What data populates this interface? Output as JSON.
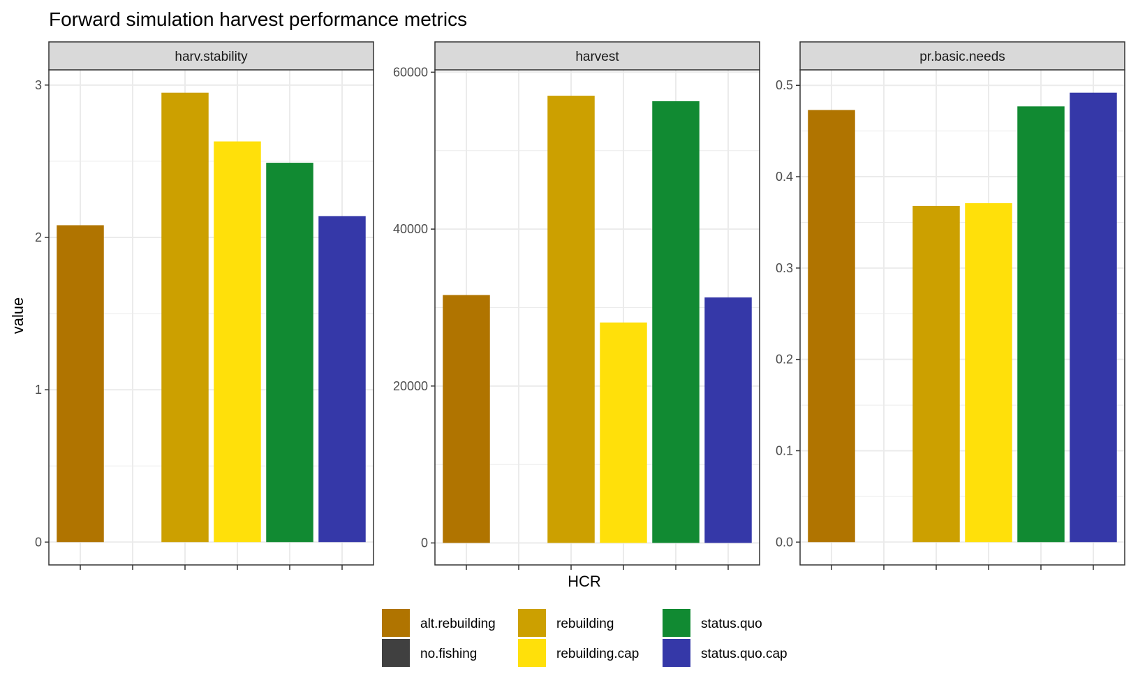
{
  "chart_data": {
    "type": "bar",
    "title": "Forward simulation harvest performance metrics",
    "xlabel": "HCR",
    "ylabel": "value",
    "categories": [
      "alt.rebuilding",
      "no.fishing",
      "rebuilding",
      "rebuilding.cap",
      "status.quo",
      "status.quo.cap"
    ],
    "colors": {
      "alt.rebuilding": "#B07400",
      "no.fishing": "#404040",
      "rebuilding": "#CCA000",
      "rebuilding.cap": "#FFE00A",
      "status.quo": "#118A32",
      "status.quo.cap": "#3538A8"
    },
    "facets": [
      {
        "name": "harv.stability",
        "values": [
          2.08,
          0,
          2.95,
          2.63,
          2.49,
          2.14
        ],
        "ylim": [
          -0.15,
          3.1
        ],
        "ticks": [
          0,
          1,
          2,
          3
        ],
        "tick_labels": [
          "0",
          "1",
          "2",
          "3"
        ]
      },
      {
        "name": "harvest",
        "values": [
          31600,
          0,
          57000,
          28100,
          56300,
          31300
        ],
        "ylim": [
          -2800,
          60300
        ],
        "ticks": [
          0,
          20000,
          40000,
          60000
        ],
        "tick_labels": [
          "0",
          "20000",
          "40000",
          "60000"
        ]
      },
      {
        "name": "pr.basic.needs",
        "values": [
          0.473,
          0,
          0.368,
          0.371,
          0.477,
          0.492
        ],
        "ylim": [
          -0.025,
          0.517
        ],
        "ticks": [
          0,
          0.1,
          0.2,
          0.3,
          0.4,
          0.5
        ],
        "tick_labels": [
          "0.0",
          "0.1",
          "0.2",
          "0.3",
          "0.4",
          "0.5"
        ]
      }
    ],
    "legend": {
      "position": "bottom",
      "entries": [
        "alt.rebuilding",
        "no.fishing",
        "rebuilding",
        "rebuilding.cap",
        "status.quo",
        "status.quo.cap"
      ]
    },
    "grid": true
  }
}
